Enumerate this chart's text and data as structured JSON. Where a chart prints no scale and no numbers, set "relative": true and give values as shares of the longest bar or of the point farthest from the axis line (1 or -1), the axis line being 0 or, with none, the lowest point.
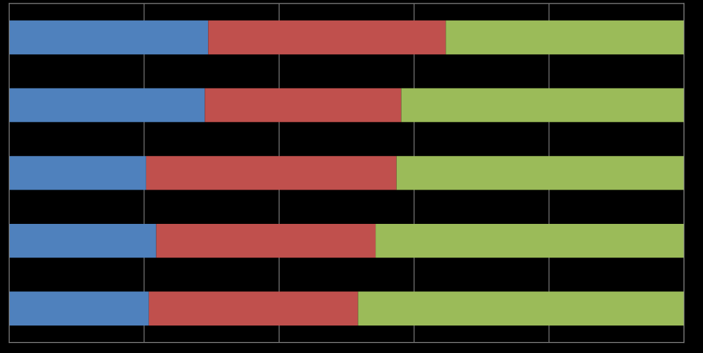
{
  "chart_data": {
    "type": "bar",
    "orientation": "horizontal",
    "stacked": true,
    "relative": true,
    "grid": "x",
    "categories": [
      null,
      null,
      null,
      null,
      null
    ],
    "series": [
      {
        "color": "#4f81bd",
        "values": [
          0.295,
          0.29,
          0.203,
          0.218,
          0.207
        ]
      },
      {
        "color": "#c0504d",
        "values": [
          0.352,
          0.291,
          0.371,
          0.325,
          0.31
        ]
      },
      {
        "color": "#9bbb59",
        "values": [
          0.353,
          0.419,
          0.426,
          0.457,
          0.483
        ]
      }
    ]
  }
}
